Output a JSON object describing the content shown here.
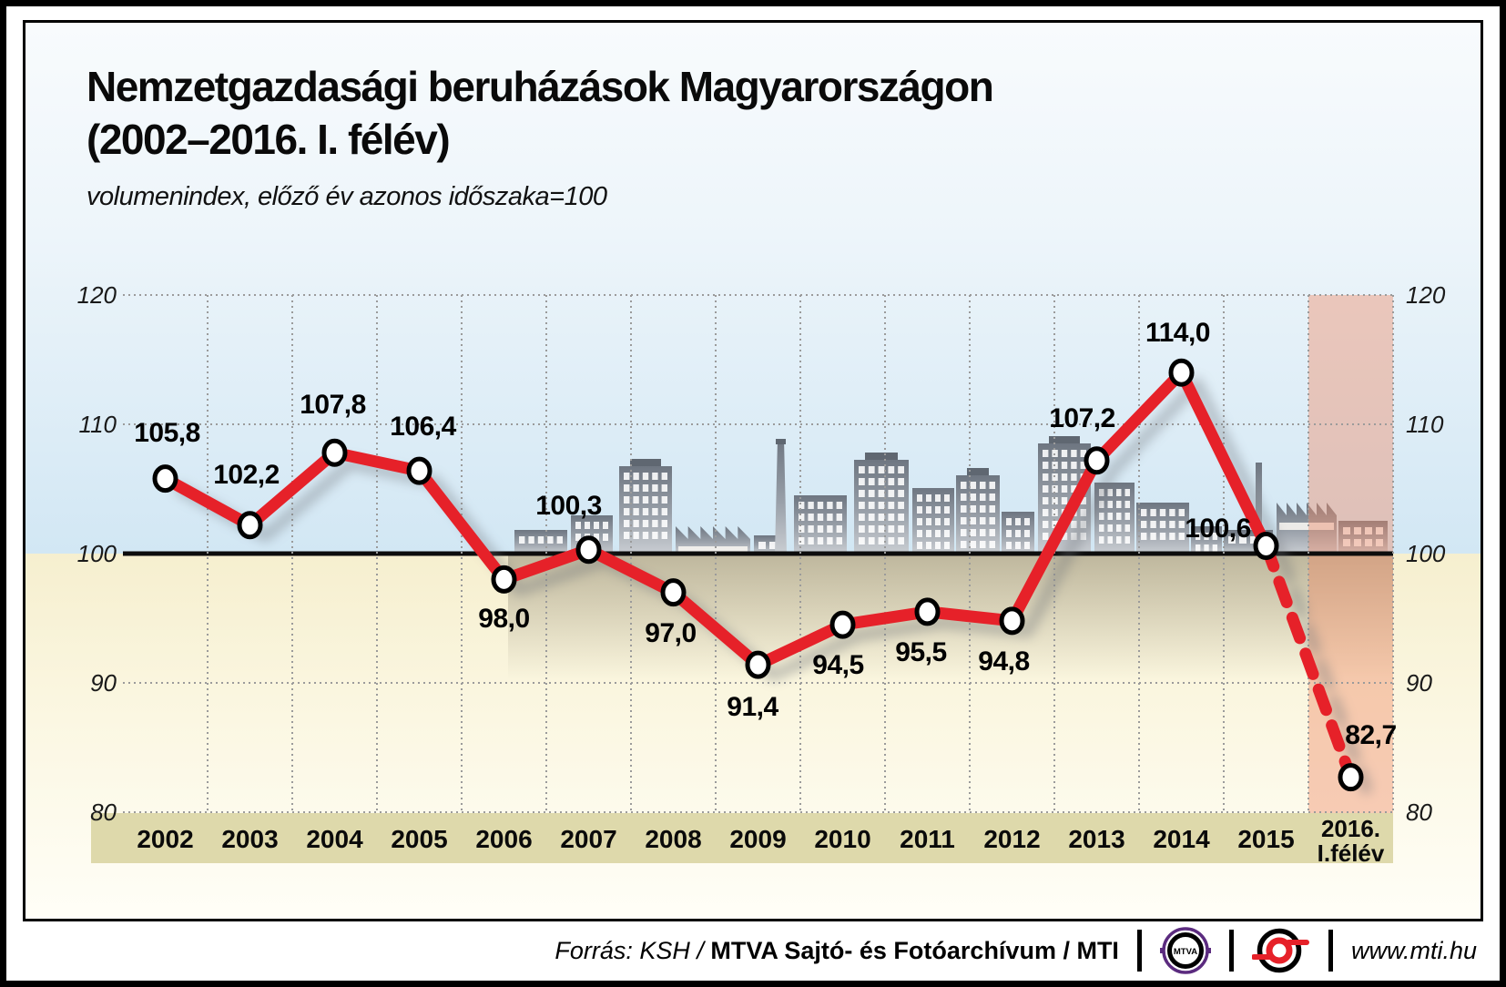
{
  "header": {
    "title_line1": "Nemzetgazdasági beruházások Magyarországon",
    "title_line2": "(2002–2016. I. félév)",
    "subtitle": "volumenindex, előző év azonos időszaka=100"
  },
  "chart_data": {
    "type": "line",
    "title": "Nemzetgazdasági beruházások Magyarországon (2002–2016. I. félév)",
    "subtitle": "volumenindex, előző év azonos időszaka=100",
    "categories": [
      "2002",
      "2003",
      "2004",
      "2005",
      "2006",
      "2007",
      "2008",
      "2009",
      "2010",
      "2011",
      "2012",
      "2013",
      "2014",
      "2015",
      "2016.\nI.félév"
    ],
    "series": [
      {
        "name": "volumenindex, előző év azonos időszaka=100",
        "values": [
          105.8,
          102.2,
          107.8,
          106.4,
          98.0,
          100.3,
          97.0,
          91.4,
          94.5,
          95.5,
          94.8,
          107.2,
          114.0,
          100.6,
          82.7
        ]
      }
    ],
    "value_labels": [
      "105,8",
      "102,2",
      "107,8",
      "106,4",
      "98,0",
      "100,3",
      "97,0",
      "91,4",
      "94,5",
      "95,5",
      "94,8",
      "107,2",
      "114,0",
      "100,6",
      "82,7"
    ],
    "y_ticks": [
      120,
      110,
      100,
      90,
      80
    ],
    "ylim": [
      80,
      120
    ],
    "baseline_value": 100,
    "grid": "dotted",
    "legend_position": "none",
    "last_segment_style": "dashed",
    "highlighted_category": "2016.\nI.félév",
    "colors": {
      "line": "#e62129",
      "marker_fill": "#ffffff",
      "marker_stroke": "#000000",
      "baseline": "#0d0d0d",
      "highlight_column": "#ee8a66",
      "axis_band": "#ded9ab",
      "bg_above_baseline": "#d2e7f4",
      "bg_below_baseline": "#f6efcf",
      "gridline": "#9b9b9b"
    }
  },
  "footer": {
    "source_regular": "Forrás: KSH /",
    "source_bold": "MTVA Sajtó- és Fotóarchívum / MTI",
    "mtva_logo_label": "MTVA",
    "website": "www.mti.hu"
  }
}
